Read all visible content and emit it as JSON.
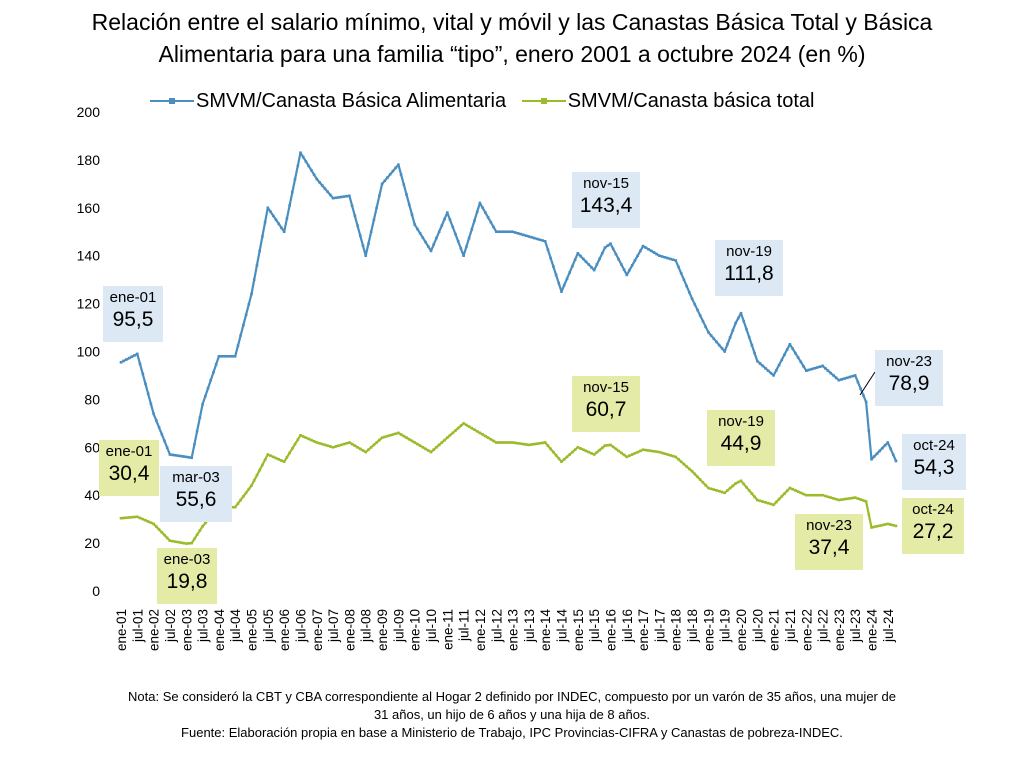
{
  "title_lines": [
    "Relación entre el salario mínimo, vital y móvil y las Canastas Básica Total y Básica",
    "Alimentaria para una familia “tipo”, enero 2001 a octubre 2024 (en %)"
  ],
  "notes": {
    "nota_line1": "Nota: Se consideró la CBT y CBA correspondiente al Hogar 2 definido por INDEC, compuesto por un varón de 35 años, una mujer de",
    "nota_line2": "31 años, un hijo de 6 años y una hija de 8 años.",
    "fuente": "Fuente: Elaboración propia en base a Ministerio de Trabajo, IPC Provincias-CIFRA y Canastas de pobreza-INDEC."
  },
  "chart_data": {
    "type": "line",
    "ylim": [
      0,
      200
    ],
    "yticks": [
      "0",
      "20",
      "40",
      "60",
      "80",
      "100",
      "120",
      "140",
      "160",
      "180",
      "200"
    ],
    "xticks": [
      "ene-01",
      "jul-01",
      "ene-02",
      "jul-02",
      "ene-03",
      "jul-03",
      "ene-04",
      "jul-04",
      "ene-05",
      "jul-05",
      "ene-06",
      "jul-06",
      "ene-07",
      "jul-07",
      "ene-08",
      "jul-08",
      "ene-09",
      "jul-09",
      "ene-10",
      "jul-10",
      "ene-11",
      "jul-11",
      "ene-12",
      "jul-12",
      "ene-13",
      "jul-13",
      "ene-14",
      "jul-14",
      "ene-15",
      "jul-15",
      "ene-16",
      "jul-16",
      "ene-17",
      "jul-17",
      "ene-18",
      "jul-18",
      "ene-19",
      "jul-19",
      "ene-20",
      "jul-20",
      "ene-21",
      "jul-21",
      "ene-22",
      "jul-22",
      "ene-23",
      "jul-23",
      "ene-24",
      "jul-24"
    ],
    "legend_position": "top",
    "grid": false,
    "series": [
      {
        "name": "SMVM/Canasta Básica Alimentaria",
        "color": "#4A8EC0",
        "points": [
          [
            "ene-01",
            95.5
          ],
          [
            "jul-01",
            99.0
          ],
          [
            "ene-02",
            74.0
          ],
          [
            "jul-02",
            57.0
          ],
          [
            "ene-03",
            56.0
          ],
          [
            "mar-03",
            55.6
          ],
          [
            "jul-03",
            78.0
          ],
          [
            "ene-04",
            98.0
          ],
          [
            "jul-04",
            98.0
          ],
          [
            "ene-05",
            124.0
          ],
          [
            "jul-05",
            160.0
          ],
          [
            "ene-06",
            150.0
          ],
          [
            "jul-06",
            183.0
          ],
          [
            "ene-07",
            172.0
          ],
          [
            "jul-07",
            164.0
          ],
          [
            "ene-08",
            165.0
          ],
          [
            "jul-08",
            140.0
          ],
          [
            "ene-09",
            170.0
          ],
          [
            "jul-09",
            178.0
          ],
          [
            "ene-10",
            153.0
          ],
          [
            "jul-10",
            142.0
          ],
          [
            "ene-11",
            158.0
          ],
          [
            "jul-11",
            140.0
          ],
          [
            "ene-12",
            162.0
          ],
          [
            "jul-12",
            150.0
          ],
          [
            "ene-13",
            150.0
          ],
          [
            "jul-13",
            148.0
          ],
          [
            "ene-14",
            146.0
          ],
          [
            "jul-14",
            125.0
          ],
          [
            "ene-15",
            141.0
          ],
          [
            "jul-15",
            134.0
          ],
          [
            "nov-15",
            143.4
          ],
          [
            "ene-16",
            145.0
          ],
          [
            "jul-16",
            132.0
          ],
          [
            "ene-17",
            144.0
          ],
          [
            "jul-17",
            140.0
          ],
          [
            "ene-18",
            138.0
          ],
          [
            "jul-18",
            122.0
          ],
          [
            "ene-19",
            108.0
          ],
          [
            "jul-19",
            100.0
          ],
          [
            "nov-19",
            111.8
          ],
          [
            "ene-20",
            116.0
          ],
          [
            "jul-20",
            96.0
          ],
          [
            "ene-21",
            90.0
          ],
          [
            "jul-21",
            103.0
          ],
          [
            "ene-22",
            92.0
          ],
          [
            "jul-22",
            94.0
          ],
          [
            "ene-23",
            88.0
          ],
          [
            "jul-23",
            90.0
          ],
          [
            "nov-23",
            78.9
          ],
          [
            "ene-24",
            55.0
          ],
          [
            "jul-24",
            62.0
          ],
          [
            "oct-24",
            54.3
          ]
        ]
      },
      {
        "name": "SMVM/Canasta básica total",
        "color": "#9BBB2B",
        "points": [
          [
            "ene-01",
            30.4
          ],
          [
            "jul-01",
            31.0
          ],
          [
            "ene-02",
            28.0
          ],
          [
            "jul-02",
            21.0
          ],
          [
            "ene-03",
            19.8
          ],
          [
            "mar-03",
            20.0
          ],
          [
            "jul-03",
            27.0
          ],
          [
            "ene-04",
            35.0
          ],
          [
            "jul-04",
            35.0
          ],
          [
            "ene-05",
            44.0
          ],
          [
            "jul-05",
            57.0
          ],
          [
            "ene-06",
            54.0
          ],
          [
            "jul-06",
            65.0
          ],
          [
            "ene-07",
            62.0
          ],
          [
            "jul-07",
            60.0
          ],
          [
            "ene-08",
            62.0
          ],
          [
            "jul-08",
            58.0
          ],
          [
            "ene-09",
            64.0
          ],
          [
            "jul-09",
            66.0
          ],
          [
            "ene-10",
            62.0
          ],
          [
            "jul-10",
            58.0
          ],
          [
            "ene-11",
            64.0
          ],
          [
            "jul-11",
            70.0
          ],
          [
            "ene-12",
            66.0
          ],
          [
            "jul-12",
            62.0
          ],
          [
            "ene-13",
            62.0
          ],
          [
            "jul-13",
            61.0
          ],
          [
            "ene-14",
            62.0
          ],
          [
            "jul-14",
            54.0
          ],
          [
            "ene-15",
            60.0
          ],
          [
            "jul-15",
            57.0
          ],
          [
            "nov-15",
            60.7
          ],
          [
            "ene-16",
            61.0
          ],
          [
            "jul-16",
            56.0
          ],
          [
            "ene-17",
            59.0
          ],
          [
            "jul-17",
            58.0
          ],
          [
            "ene-18",
            56.0
          ],
          [
            "jul-18",
            50.0
          ],
          [
            "ene-19",
            43.0
          ],
          [
            "jul-19",
            41.0
          ],
          [
            "nov-19",
            44.9
          ],
          [
            "ene-20",
            46.0
          ],
          [
            "jul-20",
            38.0
          ],
          [
            "ene-21",
            36.0
          ],
          [
            "jul-21",
            43.0
          ],
          [
            "ene-22",
            40.0
          ],
          [
            "jul-22",
            40.0
          ],
          [
            "ene-23",
            38.0
          ],
          [
            "jul-23",
            39.0
          ],
          [
            "nov-23",
            37.4
          ],
          [
            "ene-24",
            26.5
          ],
          [
            "jul-24",
            28.0
          ],
          [
            "oct-24",
            27.2
          ]
        ]
      }
    ],
    "annotations": [
      {
        "series": 0,
        "at": "ene-01",
        "label": "ene-01",
        "value": "95,5",
        "bg": "#DCE9F5"
      },
      {
        "series": 0,
        "at": "mar-03",
        "label": "mar-03",
        "value": "55,6",
        "bg": "#DCE9F5"
      },
      {
        "series": 0,
        "at": "nov-15",
        "label": "nov-15",
        "value": "143,4",
        "bg": "#DCE9F5"
      },
      {
        "series": 0,
        "at": "nov-19",
        "label": "nov-19",
        "value": "111,8",
        "bg": "#DCE9F5"
      },
      {
        "series": 0,
        "at": "nov-23",
        "label": "nov-23",
        "value": "78,9",
        "bg": "#DCE9F5"
      },
      {
        "series": 0,
        "at": "oct-24",
        "label": "oct-24",
        "value": "54,3",
        "bg": "#DCE9F5"
      },
      {
        "series": 1,
        "at": "ene-01",
        "label": "ene-01",
        "value": "30,4",
        "bg": "#E3EBA6"
      },
      {
        "series": 1,
        "at": "ene-03",
        "label": "ene-03",
        "value": "19,8",
        "bg": "#E3EBA6"
      },
      {
        "series": 1,
        "at": "nov-15",
        "label": "nov-15",
        "value": "60,7",
        "bg": "#E3EBA6"
      },
      {
        "series": 1,
        "at": "nov-19",
        "label": "nov-19",
        "value": "44,9",
        "bg": "#E3EBA6"
      },
      {
        "series": 1,
        "at": "nov-23",
        "label": "nov-23",
        "value": "37,4",
        "bg": "#E3EBA6"
      },
      {
        "series": 1,
        "at": "oct-24",
        "label": "oct-24",
        "value": "27,2",
        "bg": "#E3EBA6"
      }
    ]
  }
}
